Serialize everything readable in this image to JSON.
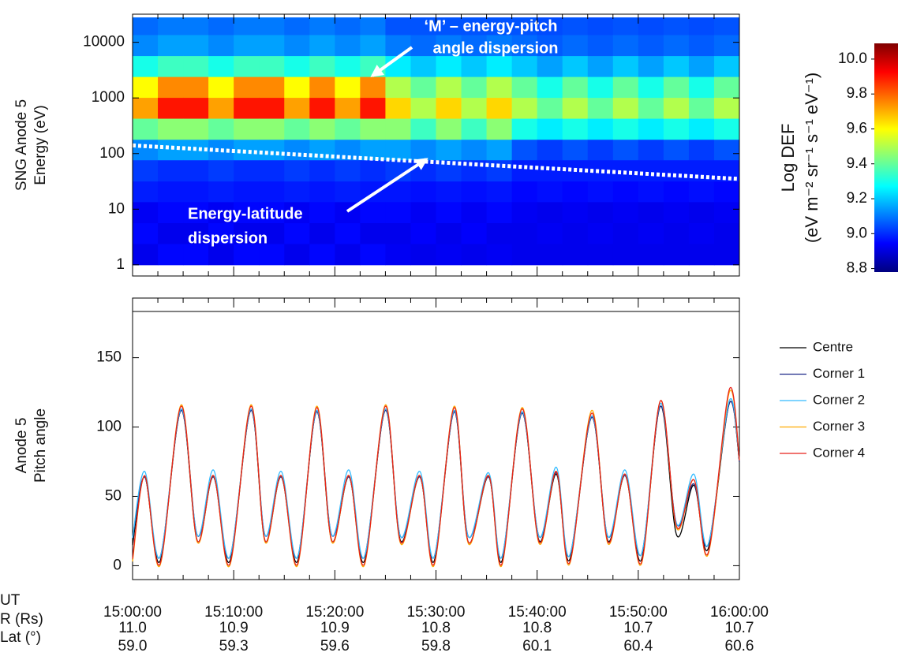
{
  "chart_data": [
    {
      "type": "heatmap",
      "ylabel": [
        "SNG Anode 5",
        "Energy (eV)"
      ],
      "ylog": true,
      "ylim": [
        0.63,
        32000
      ],
      "yticks": [
        1,
        10,
        100,
        1000,
        10000
      ],
      "xlim": [
        0,
        60
      ],
      "x_edges": [
        0,
        2.5,
        5,
        7.5,
        10,
        12.5,
        15,
        17.5,
        20,
        22.5,
        25,
        27.5,
        30,
        32.5,
        35,
        37.5,
        40,
        42.5,
        45,
        47.5,
        50,
        52.5,
        55,
        57.5,
        60
      ],
      "y_edges": [
        1,
        2.4,
        5.7,
        13.6,
        32,
        77,
        180,
        430,
        1020,
        2420,
        5750,
        13700,
        28000
      ],
      "z": [
        [
          8.92,
          8.95,
          8.93,
          8.98,
          9.02,
          9.12,
          9.4,
          9.72,
          9.6,
          9.3,
          9.12,
          9.08
        ],
        [
          8.95,
          8.92,
          8.95,
          8.97,
          9.0,
          9.15,
          9.45,
          9.9,
          9.75,
          9.35,
          9.15,
          9.1
        ],
        [
          8.95,
          8.92,
          8.95,
          8.97,
          9.0,
          9.15,
          9.45,
          9.9,
          9.75,
          9.35,
          9.15,
          9.1
        ],
        [
          8.92,
          8.95,
          8.93,
          8.98,
          9.02,
          9.12,
          9.4,
          9.72,
          9.6,
          9.3,
          9.12,
          9.08
        ],
        [
          8.95,
          8.92,
          8.95,
          8.97,
          9.0,
          9.15,
          9.45,
          9.9,
          9.75,
          9.35,
          9.15,
          9.1
        ],
        [
          8.95,
          8.92,
          8.95,
          8.97,
          9.0,
          9.15,
          9.45,
          9.9,
          9.75,
          9.35,
          9.15,
          9.1
        ],
        [
          8.92,
          8.95,
          8.93,
          8.98,
          9.02,
          9.12,
          9.4,
          9.72,
          9.6,
          9.3,
          9.12,
          9.08
        ],
        [
          8.95,
          8.92,
          8.95,
          8.97,
          9.0,
          9.15,
          9.45,
          9.9,
          9.75,
          9.35,
          9.15,
          9.1
        ],
        [
          8.92,
          8.95,
          8.93,
          8.98,
          9.02,
          9.12,
          9.4,
          9.72,
          9.6,
          9.3,
          9.12,
          9.08
        ],
        [
          8.95,
          8.92,
          8.95,
          8.97,
          9.0,
          9.15,
          9.45,
          9.9,
          9.75,
          9.35,
          9.15,
          9.1
        ],
        [
          8.93,
          8.92,
          8.95,
          8.97,
          9.02,
          9.15,
          9.45,
          9.65,
          9.5,
          9.25,
          9.1,
          9.05
        ],
        [
          8.92,
          8.94,
          8.93,
          8.96,
          9.0,
          9.12,
          9.35,
          9.5,
          9.4,
          9.2,
          9.08,
          9.05
        ],
        [
          8.93,
          8.92,
          8.95,
          8.97,
          9.02,
          9.15,
          9.45,
          9.65,
          9.5,
          9.25,
          9.1,
          9.05
        ],
        [
          8.92,
          8.94,
          8.93,
          8.96,
          9.0,
          9.12,
          9.35,
          9.5,
          9.4,
          9.2,
          9.08,
          9.05
        ],
        [
          8.93,
          8.92,
          8.95,
          8.97,
          9.02,
          9.15,
          9.45,
          9.65,
          9.5,
          9.25,
          9.1,
          9.05
        ],
        [
          8.92,
          8.92,
          8.93,
          8.95,
          8.98,
          9.05,
          9.3,
          9.5,
          9.4,
          9.2,
          9.08,
          9.05
        ],
        [
          8.92,
          8.93,
          8.92,
          8.96,
          8.98,
          9.02,
          9.25,
          9.4,
          9.3,
          9.15,
          9.06,
          9.04
        ],
        [
          8.92,
          8.92,
          8.93,
          8.95,
          8.98,
          9.05,
          9.3,
          9.5,
          9.4,
          9.2,
          9.08,
          9.05
        ],
        [
          8.92,
          8.93,
          8.92,
          8.96,
          8.98,
          9.02,
          9.25,
          9.4,
          9.3,
          9.15,
          9.06,
          9.04
        ],
        [
          8.92,
          8.92,
          8.93,
          8.95,
          8.98,
          9.05,
          9.3,
          9.5,
          9.4,
          9.2,
          9.08,
          9.05
        ],
        [
          8.92,
          8.93,
          8.92,
          8.96,
          8.98,
          9.02,
          9.25,
          9.4,
          9.3,
          9.15,
          9.06,
          9.04
        ],
        [
          8.92,
          8.92,
          8.93,
          8.95,
          8.98,
          9.05,
          9.3,
          9.5,
          9.4,
          9.2,
          9.08,
          9.05
        ],
        [
          8.92,
          8.93,
          8.92,
          8.96,
          8.98,
          9.02,
          9.25,
          9.4,
          9.3,
          9.15,
          9.06,
          9.04
        ],
        [
          8.92,
          8.92,
          8.93,
          8.95,
          8.98,
          9.05,
          9.3,
          9.5,
          9.4,
          9.2,
          9.08,
          9.05
        ]
      ],
      "dispersion_line": {
        "x": [
          0,
          60
        ],
        "y": [
          140,
          35
        ]
      },
      "annotations": [
        [
          "‘M’ – energy-pitch",
          "angle dispersion"
        ],
        [
          "Energy-latitude",
          "dispersion"
        ]
      ],
      "clim": [
        8.78,
        10.09
      ],
      "cticks": [
        {
          "value": 8.8,
          "label": "8.8"
        },
        {
          "value": 9,
          "label": "9.0"
        },
        {
          "value": 9.2,
          "label": "9.2"
        },
        {
          "value": 9.4,
          "label": "9.4"
        },
        {
          "value": 9.6,
          "label": "9.6"
        },
        {
          "value": 9.8,
          "label": "9.8"
        },
        {
          "value": 10,
          "label": "10.0"
        }
      ],
      "clabel": [
        "Log DEF",
        "(eV m⁻² sr⁻¹ s⁻¹ eV⁻¹)"
      ]
    },
    {
      "type": "line",
      "ylabel": [
        "Anode 5",
        "Pitch angle"
      ],
      "ylim": [
        -10,
        193
      ],
      "yticks": [
        0,
        50,
        100,
        150
      ],
      "xlim": [
        0,
        60
      ],
      "xticks": [
        {
          "value": 0,
          "label": "15:00:00"
        },
        {
          "value": 10,
          "label": "15:10:00"
        },
        {
          "value": 20,
          "label": "15:20:00"
        },
        {
          "value": 30,
          "label": "15:30:00"
        },
        {
          "value": 40,
          "label": "15:40:00"
        },
        {
          "value": 50,
          "label": "15:50:00"
        },
        {
          "value": 60,
          "label": "16:00:00"
        }
      ],
      "xminor": [
        2.5,
        5,
        7.5,
        12.5,
        15,
        17.5,
        22.5,
        25,
        27.5,
        32.5,
        35,
        37.5,
        42.5,
        45,
        47.5,
        52.5,
        55,
        57.5
      ],
      "x": [
        0,
        1.2,
        2.7,
        4.8,
        6.4,
        8.0,
        9.6,
        11.7,
        13.1,
        14.7,
        16.3,
        18.2,
        19.7,
        21.4,
        22.9,
        25.0,
        26.5,
        28.4,
        29.8,
        31.8,
        33.2,
        35.2,
        36.5,
        38.5,
        40.2,
        41.9,
        43.2,
        45.4,
        47.0,
        48.7,
        50.3,
        52.2,
        53.8,
        55.5,
        56.9,
        59.0,
        60.0
      ],
      "series": [
        {
          "name": "Centre",
          "color": "#000000",
          "values": [
            15,
            64,
            3,
            112,
            18,
            64,
            3,
            112,
            18,
            64,
            3,
            111,
            18,
            64,
            3,
            112,
            18,
            64,
            3,
            111,
            17,
            64,
            3,
            110,
            18,
            66,
            4,
            107,
            18,
            65,
            4,
            115,
            22,
            58,
            12,
            117,
            75
          ]
        },
        {
          "name": "Corner 1",
          "color": "#1f2a8a",
          "values": [
            20,
            64,
            6,
            112,
            22,
            64,
            6,
            112,
            22,
            64,
            6,
            111,
            22,
            64,
            6,
            112,
            21,
            64,
            6,
            111,
            21,
            64,
            6,
            110,
            21,
            67,
            7,
            107,
            21,
            65,
            8,
            115,
            30,
            59,
            15,
            117,
            75
          ]
        },
        {
          "name": "Corner 2",
          "color": "#33bbff",
          "values": [
            20,
            68,
            6,
            113,
            22,
            69,
            6,
            113,
            22,
            68,
            6,
            112,
            22,
            69,
            6,
            113,
            21,
            68,
            6,
            112,
            21,
            67,
            6,
            111,
            21,
            71,
            7,
            108,
            21,
            69,
            8,
            117,
            30,
            66,
            15,
            119,
            76
          ]
        },
        {
          "name": "Corner 3",
          "color": "#ffaa00",
          "values": [
            3,
            65,
            0,
            116,
            17,
            65,
            0,
            116,
            17,
            65,
            0,
            115,
            17,
            65,
            0,
            116,
            16,
            65,
            0,
            115,
            16,
            65,
            0,
            114,
            16,
            68,
            1,
            112,
            16,
            66,
            1,
            119,
            27,
            62,
            8,
            125,
            76
          ]
        },
        {
          "name": "Corner 4",
          "color": "#e8221b",
          "values": [
            5,
            65,
            1,
            115,
            18,
            65,
            1,
            115,
            18,
            65,
            1,
            114,
            18,
            65,
            1,
            115,
            17,
            65,
            1,
            114,
            17,
            65,
            1,
            113,
            17,
            68,
            2,
            110,
            17,
            66,
            2,
            119,
            28,
            62,
            9,
            127,
            76
          ]
        }
      ],
      "xlabel": "UT",
      "ephemeris": [
        {
          "name": "R (Rs)",
          "values": [
            "11.0",
            "10.9",
            "10.9",
            "10.8",
            "10.8",
            "10.7",
            "10.7"
          ]
        },
        {
          "name": "Lat (°)",
          "values": [
            "59.0",
            "59.3",
            "59.6",
            "59.8",
            "60.1",
            "60.4",
            "60.6"
          ]
        }
      ]
    }
  ]
}
